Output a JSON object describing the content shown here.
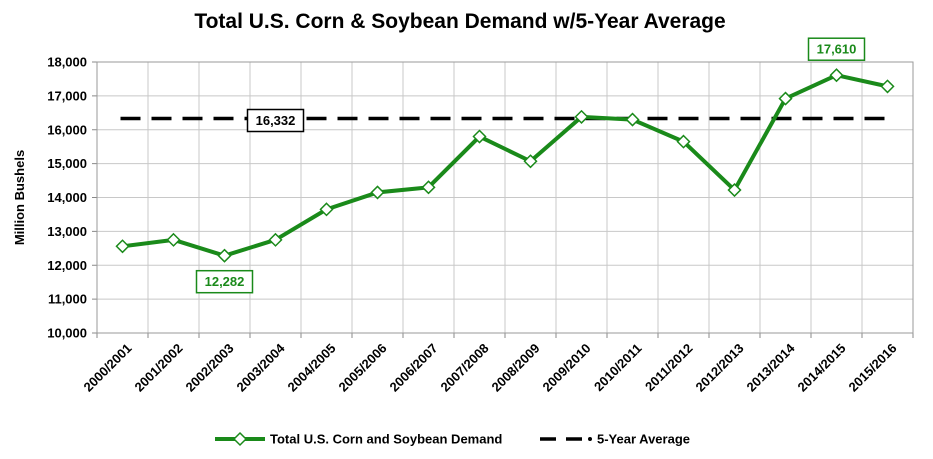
{
  "chart_data": {
    "type": "line",
    "title": "Total U.S. Corn & Soybean Demand w/5-Year Average",
    "xlabel": "",
    "ylabel": "Million Bushels",
    "ylim": [
      10000,
      18000
    ],
    "ytick_labels": [
      "10,000",
      "11,000",
      "12,000",
      "13,000",
      "14,000",
      "15,000",
      "16,000",
      "17,000",
      "18,000"
    ],
    "yticks": [
      10000,
      11000,
      12000,
      13000,
      14000,
      15000,
      16000,
      17000,
      18000
    ],
    "categories": [
      "2000/2001",
      "2001/2002",
      "2002/2003",
      "2003/2004",
      "2004/2005",
      "2005/2006",
      "2006/2007",
      "2007/2008",
      "2008/2009",
      "2009/2010",
      "2010/2011",
      "2011/2012",
      "2012/2013",
      "2013/2014",
      "2014/2015",
      "2015/2016"
    ],
    "grid": true,
    "legend_position": "bottom",
    "series": [
      {
        "name": "Total U.S. Corn and Soybean Demand",
        "color": "#1a8a1a",
        "marker": "diamond",
        "values": [
          12560,
          12750,
          12282,
          12750,
          13650,
          14150,
          14300,
          15800,
          15070,
          16380,
          16300,
          15650,
          14220,
          16920,
          17610,
          17280
        ]
      },
      {
        "name": "5-Year Average",
        "color": "#000000",
        "style": "dashed",
        "value": 16332
      }
    ],
    "annotations": [
      {
        "text": "12,282",
        "category": "2002/2003",
        "color": "#1a8a1a",
        "placement": "below"
      },
      {
        "text": "17,610",
        "category": "2014/2015",
        "color": "#1a8a1a",
        "placement": "above"
      },
      {
        "text": "16,332",
        "category": "2003/2004",
        "color": "#000000",
        "placement": "on-line"
      }
    ]
  }
}
